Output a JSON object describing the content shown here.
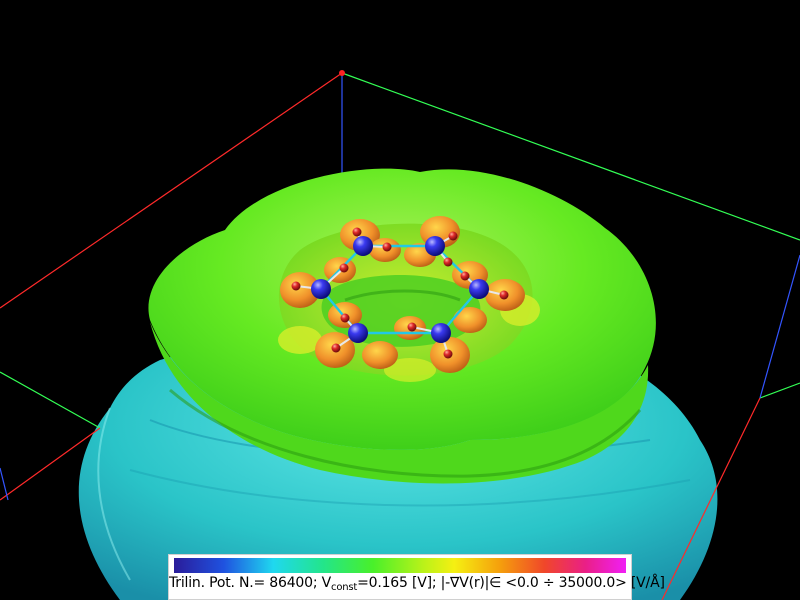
{
  "legend": {
    "method": "Trilin. Pot. N.= 86400;",
    "v_symbol": "V",
    "v_sub": "const",
    "v_value": "=0.165 [V];",
    "grad_text": "|-∇V(r)|∈ <0.0 ÷ 35000.0> [V/Å]"
  },
  "colors": {
    "background": "#000000",
    "isosurface_main": "#66ee22",
    "isosurface_lower": "#22c8c8",
    "box_red": "#ff2a2a",
    "box_green": "#33ff55",
    "box_blue": "#3355ff",
    "atom_carbon": "#2222dd",
    "atom_hydrogen": "#cc2222",
    "bond": "#22c8e6"
  },
  "molecule": {
    "carbon_count": 6,
    "hydrogen_count": 12
  }
}
